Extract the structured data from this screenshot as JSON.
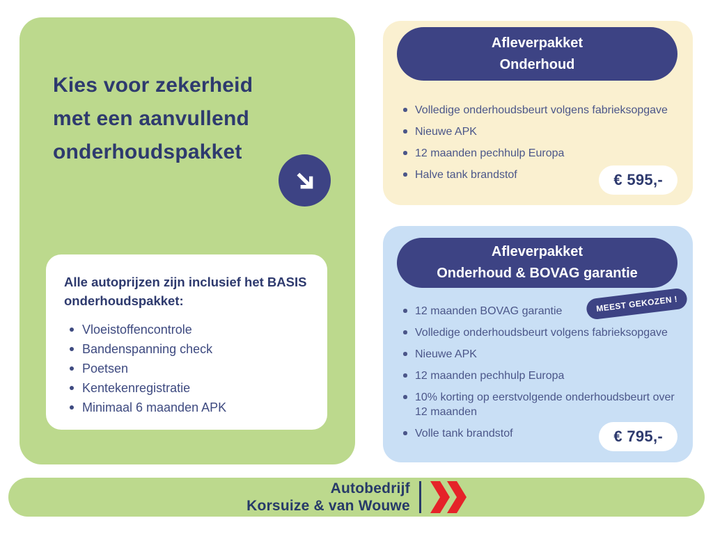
{
  "colors": {
    "green": "#bcd98d",
    "navy": "#3d4384",
    "heading_text": "#2e3a6e",
    "body_text": "#4b5689",
    "cream": "#faf0d0",
    "light_blue": "#c9dff5",
    "red": "#e52329"
  },
  "hero": {
    "heading": "Kies voor zekerheid met een aanvullend onderhoudspakket",
    "arrow_icon": "arrow-down-right-icon",
    "basis_card": {
      "title": "Alle autoprijzen zijn inclusief het BASIS onderhoudspakket:",
      "items": [
        "Vloeistoffencontrole",
        "Bandenspanning check",
        "Poetsen",
        "Kentekenregistratie",
        "Minimaal 6 maanden APK"
      ]
    }
  },
  "packages": [
    {
      "title_line1": "Afleverpakket",
      "title_line2": "Onderhoud",
      "items": [
        "Volledige onderhoudsbeurt volgens fabrieksopgave",
        "Nieuwe APK",
        "12 maanden pechhulp Europa",
        "Halve tank brandstof"
      ],
      "price": "€ 595,-"
    },
    {
      "title_line1": "Afleverpakket",
      "title_line2": "Onderhoud & BOVAG garantie",
      "badge": "MEEST GEKOZEN !",
      "items": [
        "12 maanden BOVAG garantie",
        "Volledige onderhoudsbeurt volgens fabrieksopgave",
        "Nieuwe APK",
        "12 maanden pechhulp Europa",
        "10% korting op eerstvolgende onderhoudsbeurt over 12 maanden",
        "Volle tank brandstof"
      ],
      "price": "€ 795,-"
    }
  ],
  "footer": {
    "company_line1": "Autobedrijf",
    "company_line2": "Korsuize & van Wouwe",
    "logo_icon": "double-chevron-icon"
  }
}
